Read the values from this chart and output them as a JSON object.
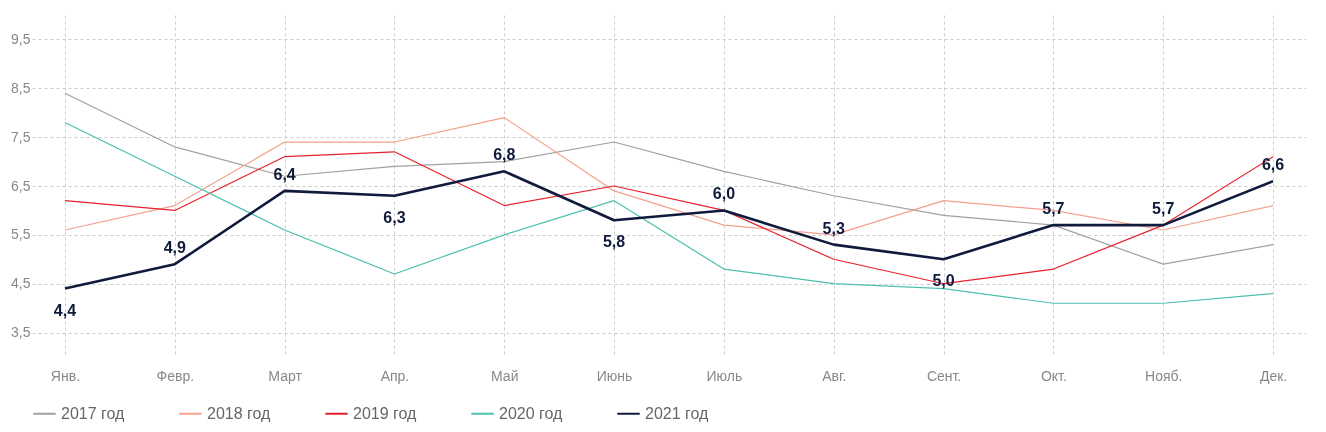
{
  "chart_data": {
    "type": "line",
    "categories": [
      "Янв.",
      "Февр.",
      "Март",
      "Апр.",
      "Май",
      "Июнь",
      "Июль",
      "Авг.",
      "Сент.",
      "Окт.",
      "Нояб.",
      "Дек."
    ],
    "series": [
      {
        "name": "2017 год",
        "color": "#a0a0a0",
        "values": [
          8.4,
          7.3,
          6.7,
          6.9,
          7.0,
          7.4,
          6.8,
          6.3,
          5.9,
          5.7,
          4.9,
          5.3
        ]
      },
      {
        "name": "2018 год",
        "color": "#f4a08c",
        "values": [
          5.6,
          6.1,
          7.4,
          7.4,
          7.9,
          6.4,
          5.7,
          5.5,
          6.2,
          6.0,
          5.6,
          6.1
        ]
      },
      {
        "name": "2019 год",
        "color": "#e8202e",
        "values": [
          6.2,
          6.0,
          7.1,
          7.2,
          6.1,
          6.5,
          6.0,
          5.0,
          4.5,
          4.8,
          5.7,
          7.1
        ]
      },
      {
        "name": "2020 год",
        "color": "#4dbfae",
        "values": [
          7.8,
          6.7,
          5.6,
          4.7,
          5.5,
          6.2,
          4.8,
          4.5,
          4.4,
          4.1,
          4.1,
          4.3
        ]
      },
      {
        "name": "2021 год",
        "color": "#0f1a3c",
        "values": [
          4.4,
          4.9,
          6.4,
          6.3,
          6.8,
          5.8,
          6.0,
          5.3,
          5.0,
          5.7,
          5.7,
          6.6
        ],
        "value_labels": [
          "4,4",
          "4,9",
          "6,4",
          "6,3",
          "6,8",
          "5,8",
          "6,0",
          "5,3",
          "5,0",
          "5,7",
          "5,7",
          "6,6"
        ]
      }
    ],
    "ylim": [
      3,
      10
    ],
    "yticks": [
      {
        "value": 3.5,
        "label": "3,5"
      },
      {
        "value": 4.5,
        "label": "4,5"
      },
      {
        "value": 5.5,
        "label": "5,5"
      },
      {
        "value": 6.5,
        "label": "6,5"
      },
      {
        "value": 7.5,
        "label": "7,5"
      },
      {
        "value": 8.5,
        "label": "8,5"
      },
      {
        "value": 9.5,
        "label": "9,5"
      }
    ],
    "grid": true,
    "legend": "bottom",
    "marker": "none",
    "line_style": "solid"
  }
}
